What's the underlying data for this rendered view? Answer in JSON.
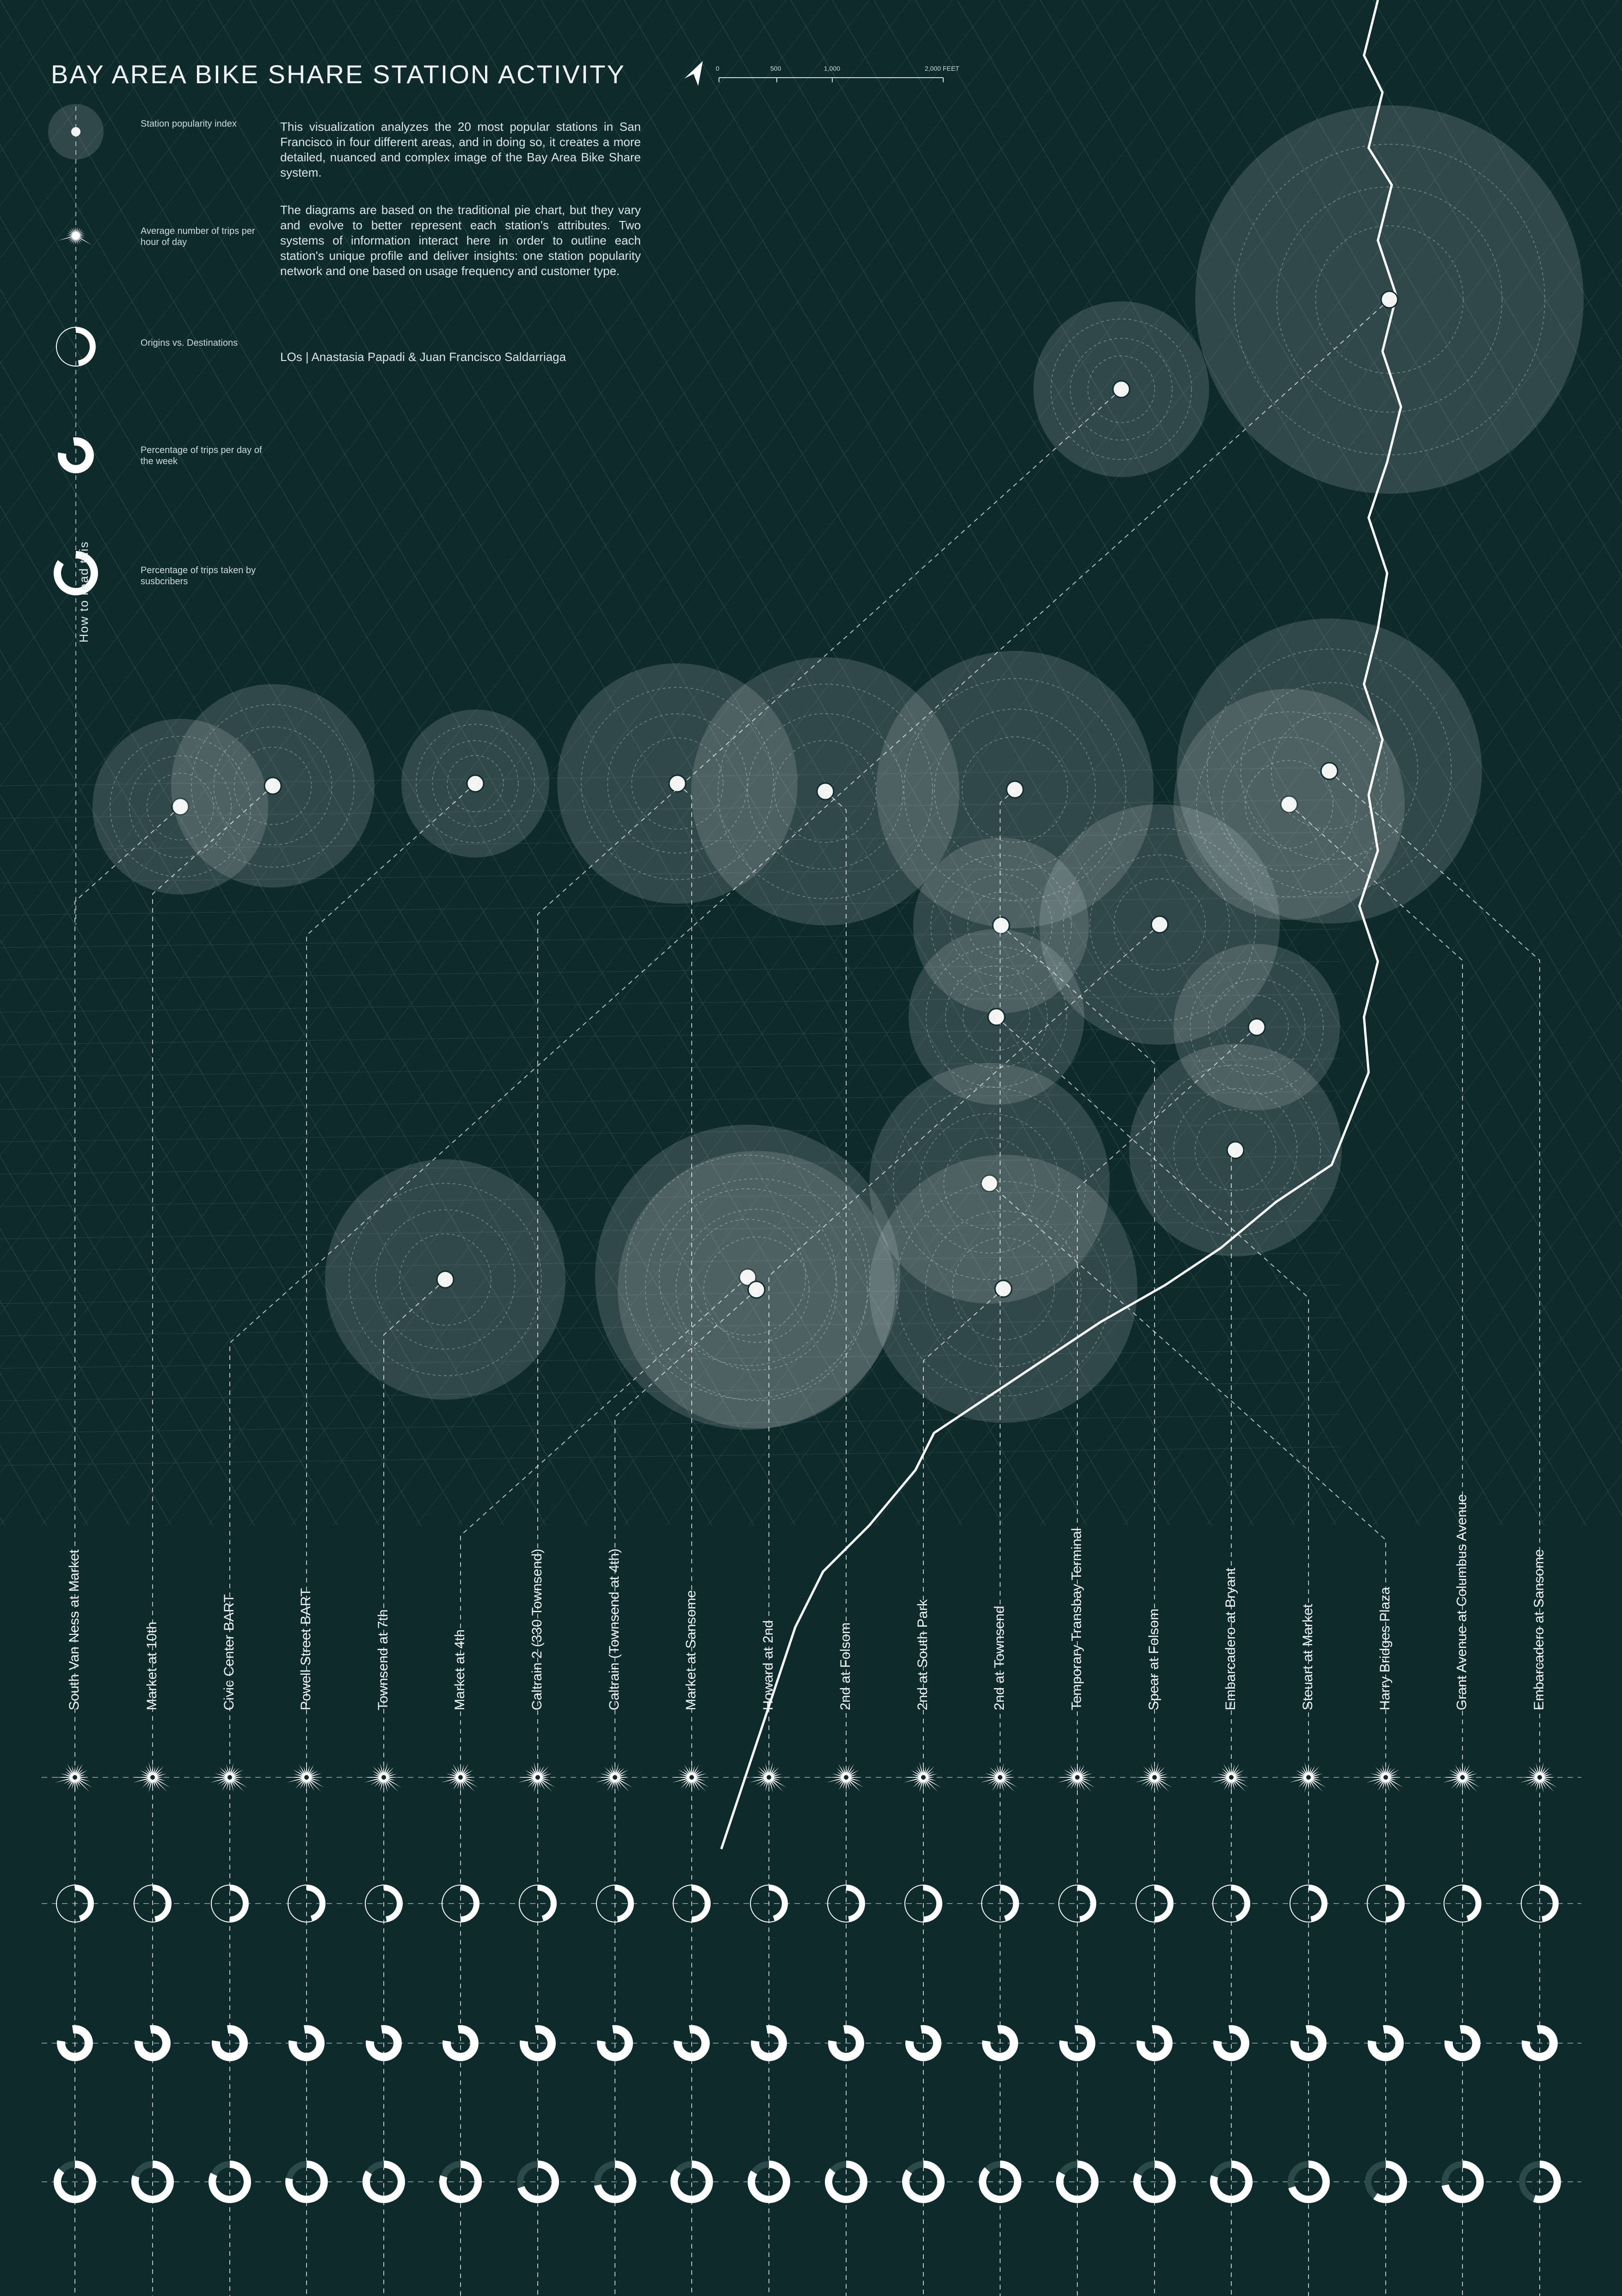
{
  "title": "BAY AREA BIKE SHARE STATION ACTIVITY",
  "scale_bar": {
    "labels": [
      "0",
      "500",
      "1,000",
      "2,000 FEET"
    ]
  },
  "description": [
    "This visualization analyzes the 20 most popular stations in San Francisco in four different areas, and in doing so, it creates a more detailed, nuanced and complex image of the Bay Area Bike Share system.",
    "The diagrams are based on the traditional pie chart, but they vary and evolve to better represent each station's attributes. Two systems of information interact here in order to outline each station's unique profile and deliver insights: one station popularity network and one based on usage frequency and customer type.",
    "LOs | Anastasia Papadi & Juan Francisco Saldarriaga"
  ],
  "legend": {
    "heading": "How to read this",
    "items": [
      {
        "label": "Station popularity index"
      },
      {
        "label": "Average number of trips per hour of day"
      },
      {
        "label": "Origins vs. Destinations"
      },
      {
        "label": "Percentage of trips per day of the week"
      },
      {
        "label": "Percentage of trips taken by susbcribers"
      }
    ]
  },
  "stations": [
    "South Van Ness at Market",
    "Market at 10th",
    "Civic Center BART",
    "Powell Street BART",
    "Townsend at 7th",
    "Market at 4th",
    "Caltrain 2 (330 Townsend)",
    "Caltrain (Townsend at 4th)",
    "Market at Sansome",
    "Howard at 2nd",
    "2nd at Folsom",
    "2nd at South Park",
    "2nd at Townsend",
    "Temporary Transbay Terminal",
    "Spear at Folsom",
    "Embarcadero at Bryant",
    "Steuart at Market",
    "Harry Bridges Plaza",
    "Grant Avenue at Columbus Avenue",
    "Embarcadero at Sansome"
  ],
  "subscriber_share": [
    0.86,
    0.8,
    0.82,
    0.78,
    0.84,
    0.8,
    0.7,
    0.72,
    0.85,
    0.84,
    0.86,
    0.85,
    0.87,
    0.83,
    0.82,
    0.8,
    0.7,
    0.6,
    0.72,
    0.55
  ],
  "colors": {
    "background": "#0e2a2c",
    "ink": "#ffffff",
    "muted": "#9fb6b6",
    "halo": "#ffffff"
  }
}
